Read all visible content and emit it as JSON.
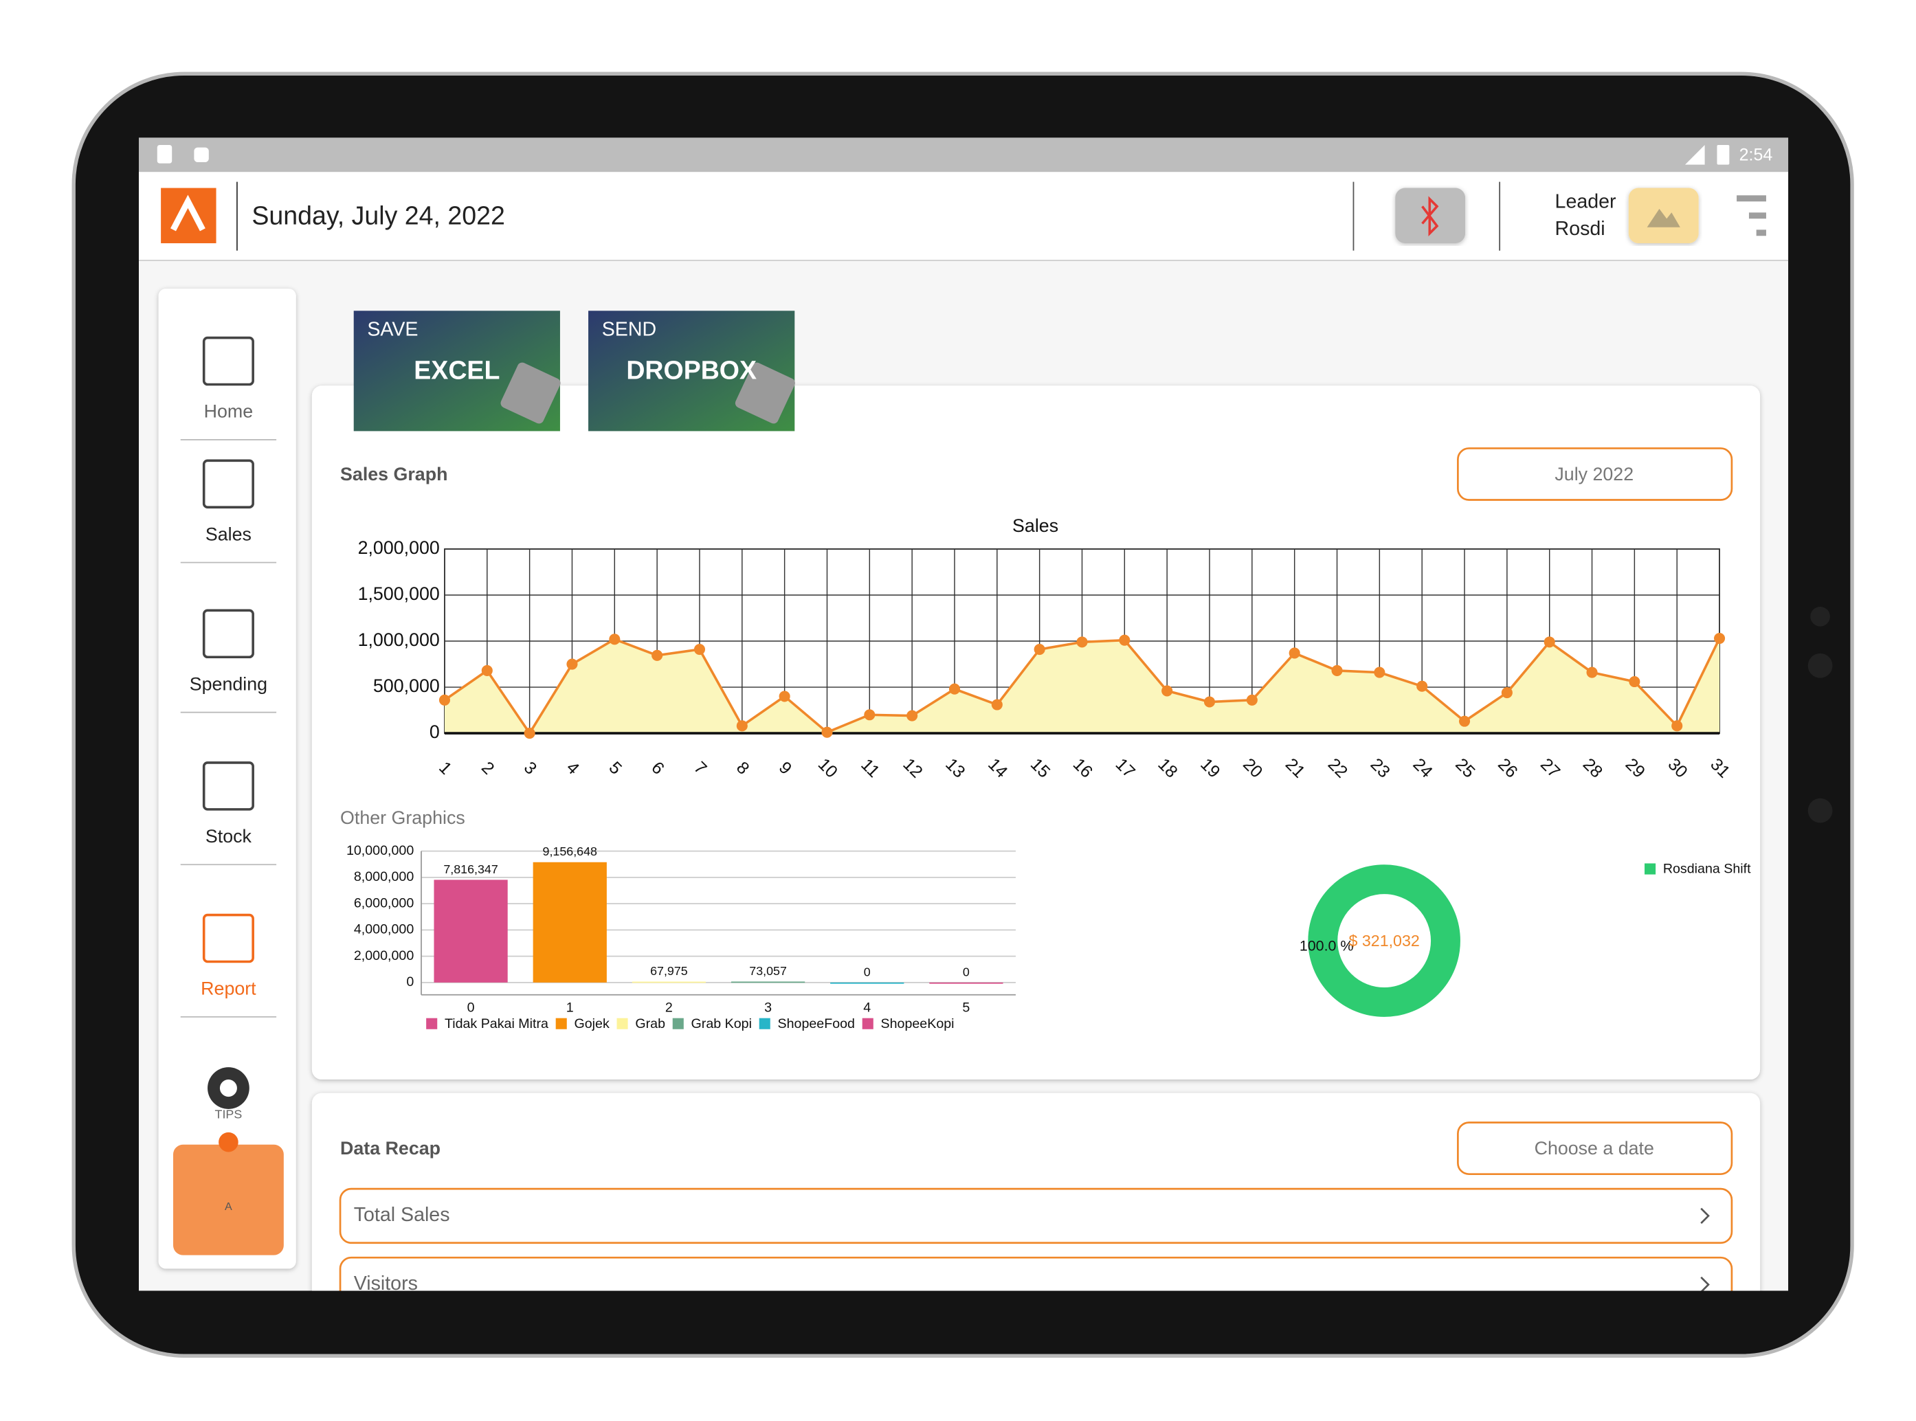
{
  "status_bar": {
    "time": "2:54"
  },
  "header": {
    "date": "Sunday, July 24, 2022",
    "user_role": "Leader",
    "user_name": "Rosdi"
  },
  "sidebar": {
    "items": [
      "Home",
      "Sales",
      "Spending",
      "Stock",
      "Report"
    ],
    "active": 4,
    "tips": "TIPS",
    "tips_card": "A"
  },
  "actions": [
    {
      "top": "SAVE",
      "main": "EXCEL"
    },
    {
      "top": "SEND",
      "main": "DROPBOX"
    }
  ],
  "sales_section": {
    "title": "Sales Graph",
    "period": "July 2022",
    "chart": {
      "type": "line",
      "title": "Sales",
      "color": "#f0882a",
      "fill": "#fbf6bd",
      "x": [
        1,
        2,
        3,
        4,
        5,
        6,
        7,
        8,
        9,
        10,
        11,
        12,
        13,
        14,
        15,
        16,
        17,
        18,
        19,
        20,
        21,
        22,
        23,
        24,
        25,
        26,
        27,
        28,
        29,
        30,
        31
      ],
      "values": [
        360000,
        680000,
        0,
        750000,
        1020000,
        845000,
        910000,
        80000,
        400000,
        10000,
        200000,
        190000,
        480000,
        310000,
        910000,
        990000,
        1010000,
        460000,
        340000,
        360000,
        870000,
        680000,
        660000,
        510000,
        130000,
        440000,
        990000,
        660000,
        560000,
        80000,
        1030000
      ],
      "xlim": [
        1,
        31
      ],
      "ylim": [
        0,
        2000000
      ],
      "yticks": [
        0,
        {
          "value": 500000,
          "label": "500,000"
        },
        {
          "value": 1000000,
          "label": "1,000,000"
        },
        {
          "value": 1500000,
          "label": "1,500,000"
        },
        {
          "value": 2000000,
          "label": "2,000,000"
        }
      ],
      "grid": true
    }
  },
  "other_graphics": {
    "title": "Other Graphics",
    "bar_chart": {
      "type": "bar",
      "categories": [
        "0",
        "1",
        "2",
        "3",
        "4",
        "5"
      ],
      "values": [
        7816347,
        9156648,
        67975,
        73057,
        0,
        0
      ],
      "value_labels": [
        "7,816,347",
        "9,156,648",
        "67,975",
        "73,057",
        "0",
        "0"
      ],
      "series_names": [
        "Tidak Pakai Mitra",
        "Gojek",
        "Grab",
        "Grab Kopi",
        "ShopeeFood",
        "ShopeeKopi"
      ],
      "colors": [
        "#d94f8a",
        "#f7900a",
        "#fdf39a",
        "#6aa88a",
        "#27b5c8",
        "#d94f8a"
      ],
      "ylim": [
        0,
        10000000
      ],
      "yticks": [
        0,
        {
          "value": 2000000,
          "label": "2,000,000"
        },
        {
          "value": 4000000,
          "label": "4,000,000"
        },
        {
          "value": 6000000,
          "label": "6,000,000"
        },
        {
          "value": 8000000,
          "label": "8,000,000"
        },
        {
          "value": 10000000,
          "label": "10,000,000"
        }
      ],
      "grid": true
    },
    "pie_chart": {
      "type": "pie",
      "categories": [
        "Rosdiana Shift"
      ],
      "values": [
        100
      ],
      "value_labels": [
        "100.0 %"
      ],
      "colors": [
        "#2ecc71"
      ],
      "center_text": "$ 321,032"
    }
  },
  "data_recap": {
    "title": "Data Recap",
    "date_button": "Choose a date",
    "rows": [
      "Total Sales",
      "Visitors"
    ]
  }
}
